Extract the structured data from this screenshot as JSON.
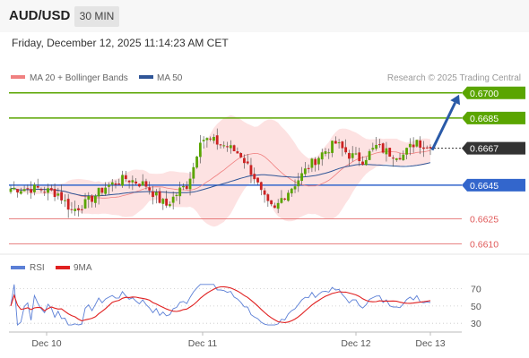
{
  "header": {
    "symbol": "AUD/USD",
    "timeframe": "30 MIN"
  },
  "timestamp": "Friday, December 12, 2025 11:14:23 AM CET",
  "legend": {
    "ma20": "MA 20 + Bollinger Bands",
    "ma50": "MA 50",
    "ma20_color": "#f08080",
    "ma50_color": "#2f5597"
  },
  "copyright": "Research © 2025 Trading Central",
  "rsi_legend": {
    "rsi": "RSI",
    "ma": "9MA",
    "rsi_color": "#5b7fd6",
    "ma_color": "#e02020"
  },
  "chart_data": [
    {
      "type": "candlestick",
      "y_range": [
        0.6606,
        0.6702
      ],
      "x_ticks": [
        "Dec 10",
        "Dec 11",
        "Dec 12",
        "Dec 13"
      ],
      "levels": [
        {
          "value": 0.67,
          "label": "0.6700",
          "kind": "target",
          "color": "#5aa500"
        },
        {
          "value": 0.6685,
          "label": "0.6685",
          "kind": "resistance",
          "color": "#5aa500"
        },
        {
          "value": 0.6667,
          "label": "0.6667",
          "kind": "last",
          "color": "#333333"
        },
        {
          "value": 0.6645,
          "label": "0.6645",
          "kind": "pivot",
          "color": "#3366cc"
        },
        {
          "value": 0.6625,
          "label": "0.6625",
          "kind": "support",
          "color": "#e05a5a"
        },
        {
          "value": 0.661,
          "label": "0.6610",
          "kind": "support",
          "color": "#e05a5a"
        }
      ],
      "last_close": 0.6667,
      "projection_target": 0.67,
      "colors": {
        "up": "#5aa500",
        "down": "#cc2222",
        "band": "#fde2e2",
        "arrow": "#2a5aa8"
      }
    },
    {
      "type": "line",
      "title": "RSI",
      "y_range": [
        25,
        80
      ],
      "ticks": [
        70,
        50,
        30
      ],
      "series": [
        {
          "name": "RSI",
          "color": "#5b7fd6"
        },
        {
          "name": "9MA",
          "color": "#e02020"
        }
      ]
    }
  ]
}
